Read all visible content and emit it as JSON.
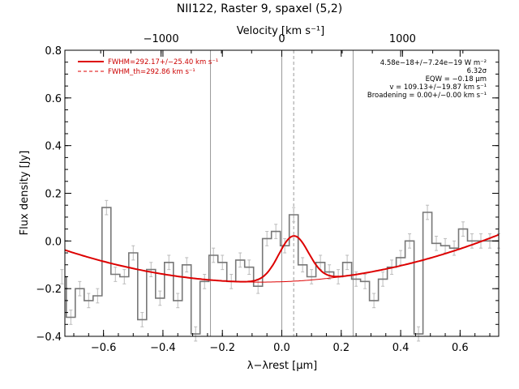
{
  "chart_data": {
    "type": "line",
    "title": "NII122, Raster 9, spaxel (5,2)",
    "xlabel": "λ−λrest [μm]",
    "ylabel": "Flux density [Jy]",
    "top_xlabel": "Velocity [km s⁻¹]",
    "xlim": [
      -0.73,
      0.73
    ],
    "ylim": [
      -0.4,
      0.8
    ],
    "x_ticks": [
      "−0.6",
      "−0.4",
      "−0.2",
      "0.0",
      "0.2",
      "0.4",
      "0.6"
    ],
    "y_ticks": [
      "−0.4",
      "−0.2",
      "0.0",
      "0.2",
      "0.4",
      "0.6",
      "0.8"
    ],
    "top_ticks": [
      "−1000",
      "0",
      "1000"
    ],
    "vlines_solid": [
      -0.24,
      0.0,
      0.24
    ],
    "vline_dashed": 0.04,
    "legend": [
      {
        "label": "FWHM=292.17+/−25.40 km s⁻¹",
        "style": "solid",
        "color": "#dd0000"
      },
      {
        "label": "FWHM_th=292.86 km s⁻¹",
        "style": "dashed",
        "color": "#dd0000"
      }
    ],
    "annotations": [
      "4.58e−18+/−7.24e−19 W m⁻²",
      "6.32σ",
      "EQW = −0.18 μm",
      "v = 109.13+/−19.87 km s⁻¹",
      "Broadening = 0.00+/−0.00 km s⁻¹"
    ],
    "spectrum": {
      "name": "data",
      "color": "#777777",
      "x": [
        -0.74,
        -0.71,
        -0.68,
        -0.65,
        -0.62,
        -0.59,
        -0.56,
        -0.53,
        -0.5,
        -0.47,
        -0.44,
        -0.41,
        -0.38,
        -0.35,
        -0.32,
        -0.29,
        -0.26,
        -0.23,
        -0.2,
        -0.17,
        -0.14,
        -0.11,
        -0.08,
        -0.05,
        -0.02,
        0.01,
        0.04,
        0.07,
        0.1,
        0.13,
        0.16,
        0.19,
        0.22,
        0.25,
        0.28,
        0.31,
        0.34,
        0.37,
        0.4,
        0.43,
        0.46,
        0.49,
        0.52,
        0.55,
        0.58,
        0.61,
        0.64,
        0.67,
        0.7,
        0.73
      ],
      "y": [
        -0.15,
        -0.32,
        -0.2,
        -0.25,
        -0.23,
        0.14,
        -0.14,
        -0.15,
        -0.05,
        -0.33,
        -0.12,
        -0.24,
        -0.09,
        -0.25,
        -0.1,
        -0.39,
        -0.17,
        -0.06,
        -0.09,
        -0.17,
        -0.08,
        -0.11,
        -0.19,
        0.01,
        0.04,
        -0.02,
        0.11,
        -0.1,
        -0.15,
        -0.09,
        -0.13,
        -0.15,
        -0.09,
        -0.16,
        -0.17,
        -0.25,
        -0.16,
        -0.11,
        -0.07,
        0.0,
        -0.39,
        0.12,
        -0.01,
        -0.02,
        -0.03,
        0.05,
        0.0,
        0.0,
        0.0,
        0.0
      ],
      "err": 0.03
    },
    "fit": {
      "name": "fit",
      "color": "#dd0000",
      "center": 0.04,
      "amplitude": 0.19,
      "sigma": 0.05,
      "baseline": [
        -0.171,
        0.044,
        0.31
      ]
    }
  }
}
